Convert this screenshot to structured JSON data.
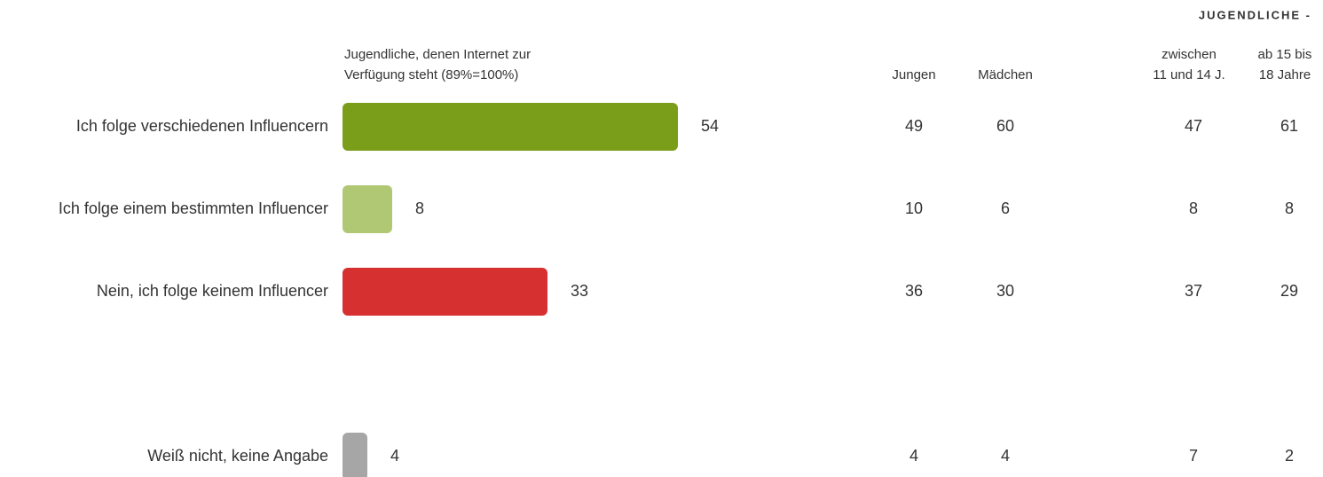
{
  "chart_data": {
    "type": "bar",
    "orientation": "horizontal",
    "group_label": "JUGENDLICHE -",
    "measure_label": [
      "Jugendliche, denen Internet zur",
      "Verfügung steht (89%=100%)"
    ],
    "categories": [
      "Ich folge verschiedenen Influencern",
      "Ich folge einem bestimmten Influencer",
      "Nein, ich folge keinem Influencer",
      "Weiß nicht, keine Angabe"
    ],
    "values": [
      54,
      8,
      33,
      4
    ],
    "colors": [
      "#7a9e1a",
      "#b0c774",
      "#d63031",
      "#a6a6a6"
    ],
    "series": [
      {
        "name": [
          "Jungen"
        ],
        "values": [
          49,
          10,
          36,
          4
        ]
      },
      {
        "name": [
          "Mädchen"
        ],
        "values": [
          60,
          6,
          30,
          4
        ]
      },
      {
        "name": [
          "zwischen",
          "11 und 14 J."
        ],
        "values": [
          47,
          8,
          37,
          7
        ]
      },
      {
        "name": [
          "ab 15 bis",
          "18 Jahre"
        ],
        "values": [
          61,
          8,
          29,
          2
        ]
      }
    ]
  }
}
